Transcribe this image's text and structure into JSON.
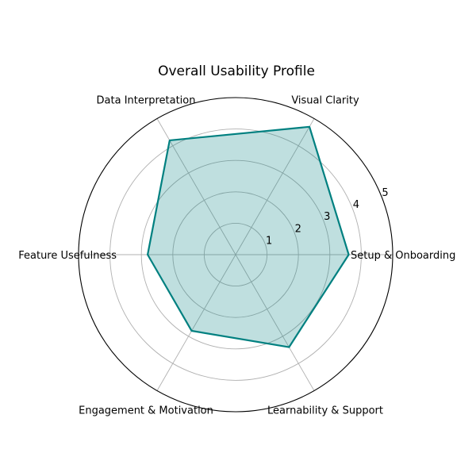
{
  "chart_data": {
    "type": "radar",
    "title": "Overall Usability Profile",
    "categories": [
      "Setup & Onboarding",
      "Visual Clarity",
      "Data Interpretation",
      "Feature Usefulness",
      "Engagement & Motivation",
      "Learnability & Support"
    ],
    "series": [
      {
        "values": [
          3.6,
          4.7,
          4.2,
          2.8,
          2.8,
          3.4
        ]
      }
    ],
    "rlim": [
      0,
      5
    ],
    "rticks": [
      "1",
      "2",
      "3",
      "4",
      "5"
    ],
    "grid": true,
    "colors": {
      "line": "#008080",
      "fill": "#008080"
    }
  }
}
